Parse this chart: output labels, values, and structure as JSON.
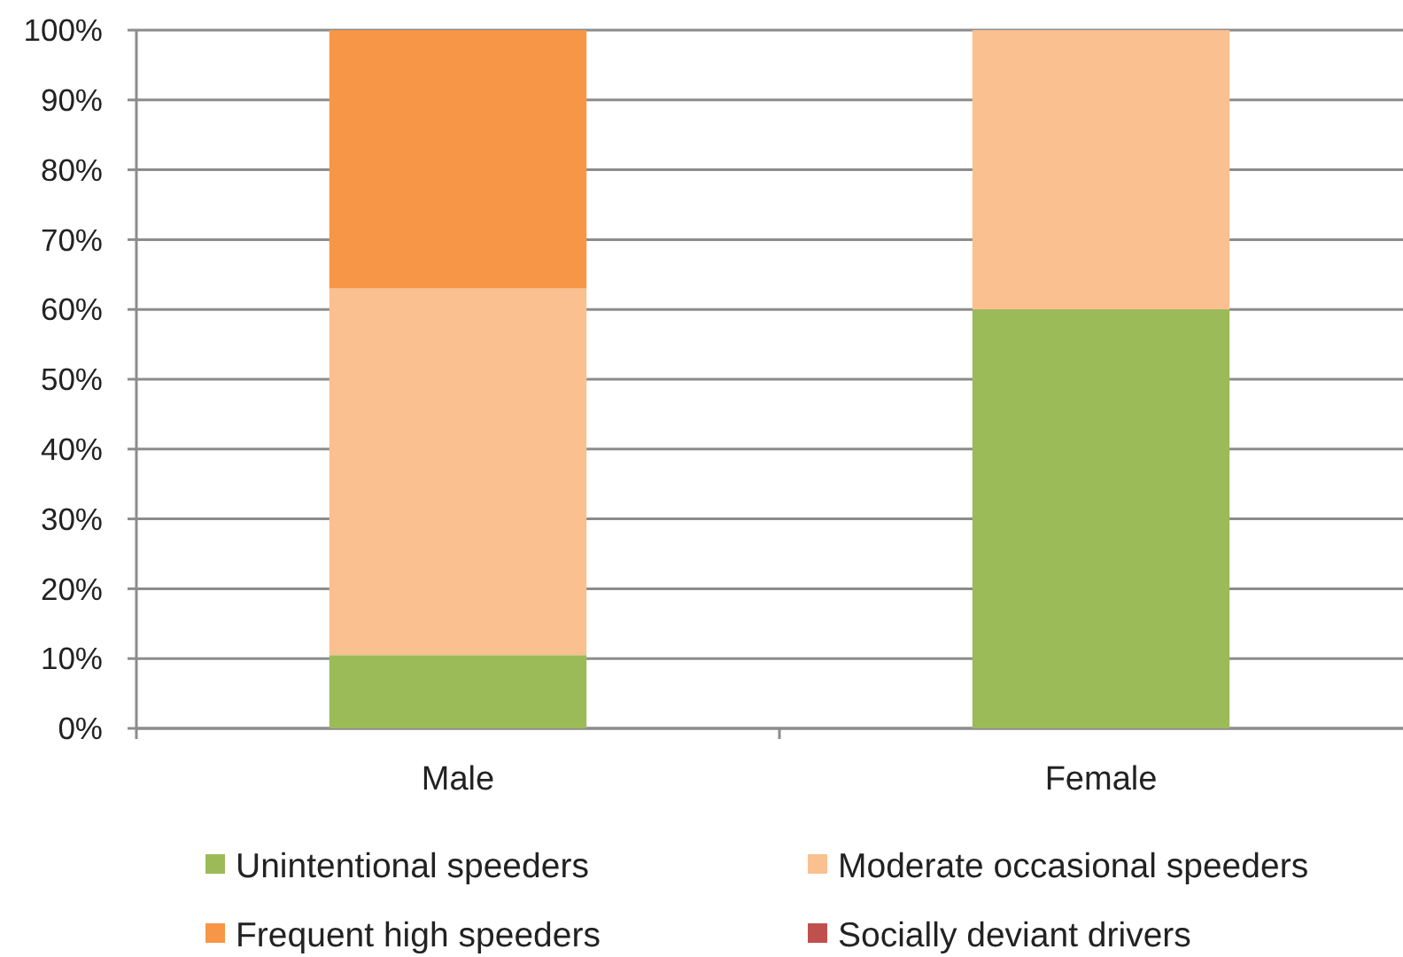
{
  "chart_data": {
    "type": "bar",
    "stacked": true,
    "categories": [
      "Male",
      "Female"
    ],
    "series": [
      {
        "name": "Unintentional speeders",
        "color": "#9bbb59",
        "values": [
          10.5,
          60
        ]
      },
      {
        "name": "Moderate occasional speeders",
        "color": "#fac090",
        "values": [
          52.5,
          40
        ]
      },
      {
        "name": "Frequent high speeders",
        "color": "#f79646",
        "values": [
          37,
          0
        ]
      },
      {
        "name": "Socially deviant drivers",
        "color": "#c0504d",
        "values": [
          0,
          0
        ]
      }
    ],
    "ylim": [
      0,
      100
    ],
    "yticks": [
      {
        "value": 0,
        "label": "0%"
      },
      {
        "value": 10,
        "label": "10%"
      },
      {
        "value": 20,
        "label": "20%"
      },
      {
        "value": 30,
        "label": "30%"
      },
      {
        "value": 40,
        "label": "40%"
      },
      {
        "value": 50,
        "label": "50%"
      },
      {
        "value": 60,
        "label": "60%"
      },
      {
        "value": 70,
        "label": "70%"
      },
      {
        "value": 80,
        "label": "80%"
      },
      {
        "value": 90,
        "label": "90%"
      },
      {
        "value": 100,
        "label": "100%"
      }
    ],
    "grid": "y",
    "legend": "bottom"
  }
}
